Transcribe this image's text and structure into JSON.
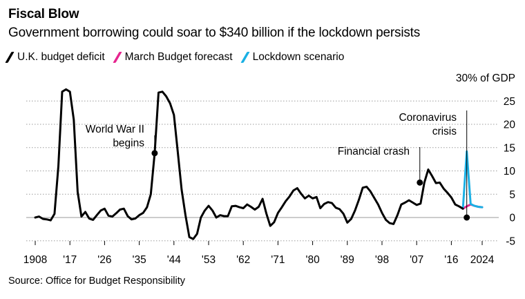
{
  "header": {
    "title": "Fiscal Blow",
    "subtitle": "Government borrowing could soar to $340 billion if the lockdown persists"
  },
  "source": "Source: Office for Budget Responsibility",
  "chart_data": {
    "type": "line",
    "title": "Fiscal Blow",
    "ylabel": "% of GDP",
    "ylim": [
      -5,
      30
    ],
    "yticks": [
      {
        "value": 30,
        "label": "30% of GDP"
      },
      {
        "value": 25,
        "label": "25"
      },
      {
        "value": 20,
        "label": "20"
      },
      {
        "value": 15,
        "label": "15"
      },
      {
        "value": 10,
        "label": "10"
      },
      {
        "value": 5,
        "label": "5"
      },
      {
        "value": 0,
        "label": "0"
      },
      {
        "value": -5,
        "label": "-5"
      }
    ],
    "xlim": [
      1908,
      2024
    ],
    "xticks": [
      {
        "value": 1908,
        "label": "1908"
      },
      {
        "value": 1917,
        "label": "'17"
      },
      {
        "value": 1926,
        "label": "'26"
      },
      {
        "value": 1935,
        "label": "'35"
      },
      {
        "value": 1944,
        "label": "'44"
      },
      {
        "value": 1953,
        "label": "'53"
      },
      {
        "value": 1962,
        "label": "'62"
      },
      {
        "value": 1971,
        "label": "'71"
      },
      {
        "value": 1980,
        "label": "'80"
      },
      {
        "value": 1989,
        "label": "'89"
      },
      {
        "value": 1998,
        "label": "'98"
      },
      {
        "value": 2007,
        "label": "'07"
      },
      {
        "value": 2016,
        "label": "'16"
      },
      {
        "value": 2024,
        "label": "2024"
      }
    ],
    "series": [
      {
        "name": "U.K. budget deficit",
        "color": "#000000",
        "x": [
          1908,
          1909,
          1910,
          1911,
          1912,
          1913,
          1914,
          1915,
          1916,
          1917,
          1918,
          1919,
          1920,
          1921,
          1922,
          1923,
          1924,
          1925,
          1926,
          1927,
          1928,
          1929,
          1930,
          1931,
          1932,
          1933,
          1934,
          1935,
          1936,
          1937,
          1938,
          1939,
          1940,
          1941,
          1942,
          1943,
          1944,
          1945,
          1946,
          1947,
          1948,
          1949,
          1950,
          1951,
          1952,
          1953,
          1954,
          1955,
          1956,
          1957,
          1958,
          1959,
          1960,
          1961,
          1962,
          1963,
          1964,
          1965,
          1966,
          1967,
          1968,
          1969,
          1970,
          1971,
          1972,
          1973,
          1974,
          1975,
          1976,
          1977,
          1978,
          1979,
          1980,
          1981,
          1982,
          1983,
          1984,
          1985,
          1986,
          1987,
          1988,
          1989,
          1990,
          1991,
          1992,
          1993,
          1994,
          1995,
          1996,
          1997,
          1998,
          1999,
          2000,
          2001,
          2002,
          2003,
          2004,
          2005,
          2006,
          2007,
          2008,
          2009,
          2010,
          2011,
          2012,
          2013,
          2014,
          2015,
          2016,
          2017,
          2018,
          2019
        ],
        "values": [
          0,
          0.2,
          -0.3,
          -0.4,
          -0.6,
          0.8,
          11,
          27,
          27.5,
          27,
          21,
          5.5,
          0.2,
          1.2,
          -0.2,
          -0.5,
          0.5,
          1.5,
          1.9,
          0.4,
          0.2,
          0.9,
          1.7,
          1.9,
          0.3,
          -0.4,
          -0.2,
          0.5,
          1,
          2.2,
          5,
          13.8,
          26.8,
          27,
          26,
          24.5,
          22,
          14,
          6,
          0.5,
          -4.2,
          -4.6,
          -3.5,
          0,
          1.5,
          2.5,
          1.5,
          0,
          0.5,
          0.3,
          0.3,
          2.4,
          2.5,
          2.2,
          2,
          2.8,
          2.3,
          1.7,
          2.3,
          4,
          0.8,
          -1.8,
          -1,
          1,
          2.2,
          3.5,
          4.5,
          5.8,
          6.3,
          5.1,
          4.1,
          4.7,
          4.1,
          4.4,
          2,
          2.9,
          3.3,
          3.1,
          2.1,
          1.8,
          0.8,
          -1.1,
          -0.3,
          1.5,
          3.8,
          6.4,
          6.6,
          5.6,
          4.2,
          2.8,
          1,
          -0.5,
          -1.2,
          -1.4,
          0.5,
          2.8,
          3.2,
          3.7,
          3.2,
          2.7,
          3,
          7.5,
          10.3,
          8.9,
          7.4,
          7.5,
          6.2,
          5.3,
          4.3,
          2.8,
          2.4,
          1.9
        ]
      },
      {
        "name": "March Budget forecast",
        "color": "#e6258f",
        "x": [
          2019,
          2020,
          2021,
          2022,
          2023,
          2024
        ],
        "values": [
          1.9,
          2.4,
          2.8,
          2.5,
          2.3,
          2.2
        ]
      },
      {
        "name": "Lockdown scenario",
        "color": "#1ab0e4",
        "x": [
          2019,
          2020,
          2021,
          2022,
          2023,
          2024
        ],
        "values": [
          1.9,
          14.2,
          2.9,
          2.5,
          2.3,
          2.2
        ]
      }
    ],
    "annotations": [
      {
        "label_lines": [
          "World War II",
          "begins"
        ],
        "x": 1939,
        "y": 13.8
      },
      {
        "label_lines": [
          "Financial crash"
        ],
        "x": 2008,
        "y": 7.5
      },
      {
        "label_lines": [
          "Coronavirus",
          "crisis"
        ],
        "x": 2020,
        "y": 0
      }
    ]
  }
}
